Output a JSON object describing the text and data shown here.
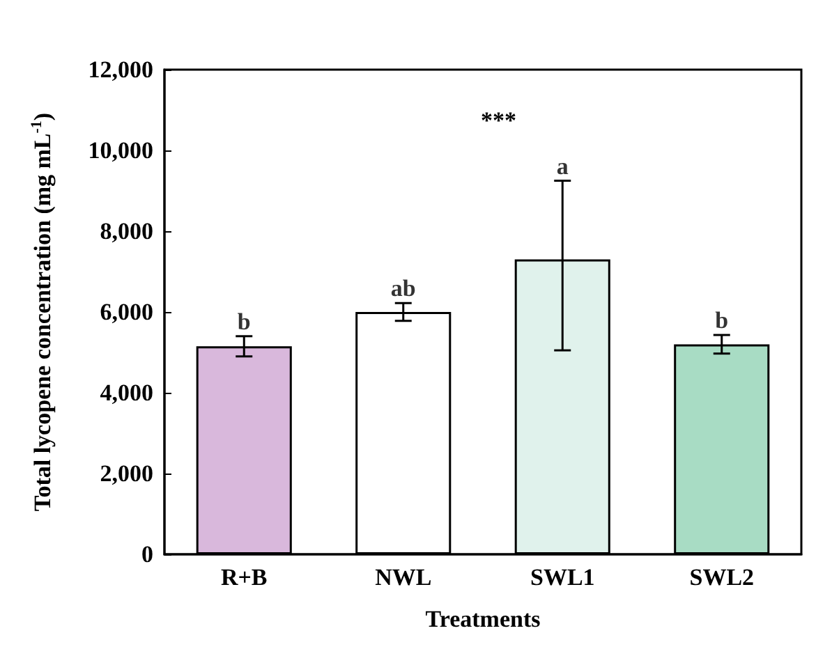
{
  "chart_data": {
    "type": "bar",
    "xlabel": "Treatments",
    "ylabel": "Total lycopene concentration (mg mL$^{-1}$)",
    "categories": [
      "R+B",
      "NWL",
      "SWL1",
      "SWL2"
    ],
    "values": [
      5150,
      6000,
      7300,
      5200
    ],
    "colors": [
      "#d9b8dc",
      "#ffffff",
      "#e0f2ec",
      "#a8dcc4"
    ],
    "errors": [
      250,
      220,
      [
        5050,
        9250
      ],
      230
    ],
    "ylim": [
      0,
      12000
    ],
    "yticks": [
      0,
      {
        "value": 2000,
        "label": "2,000"
      },
      {
        "value": 4000,
        "label": "4,000"
      },
      {
        "value": 6000,
        "label": "6,000"
      },
      {
        "value": 8000,
        "label": "8,000"
      },
      {
        "value": 10000,
        "label": "10,000"
      },
      {
        "value": 12000,
        "label": "12,000"
      }
    ],
    "grid": false,
    "annotations": [
      {
        "text": "b",
        "x": "R+B",
        "y": 5400
      },
      {
        "text": "ab",
        "x": "NWL",
        "y": 6220
      },
      {
        "text": "a",
        "x": "SWL1",
        "y": 9250
      },
      {
        "text": "b",
        "x": "SWL2",
        "y": 5430
      },
      "***"
    ]
  }
}
